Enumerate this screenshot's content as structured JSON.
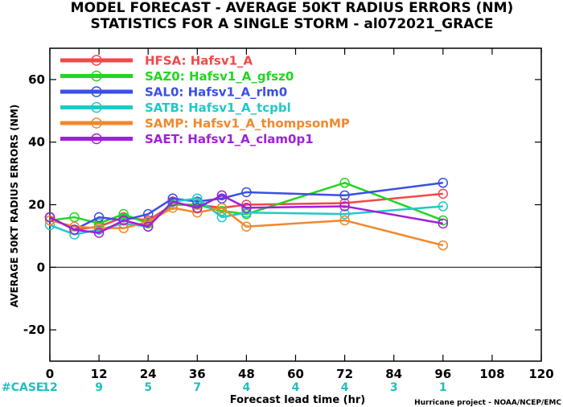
{
  "chart_data": {
    "type": "line",
    "title": "MODEL FORECAST - AVERAGE 50KT RADIUS ERRORS (NM)",
    "subtitle": "STATISTICS FOR A SINGLE STORM - al072021_GRACE",
    "ylabel": "AVERAGE 50KT RADIUS ERRORS (NM)",
    "xlabel": "Forecast lead time (hr)",
    "xlim": [
      0,
      120
    ],
    "ylim": [
      -30,
      70
    ],
    "xticks": [
      0,
      12,
      24,
      36,
      48,
      60,
      72,
      84,
      96,
      108,
      120
    ],
    "yticks": [
      -20,
      0,
      20,
      40,
      60
    ],
    "grid": false,
    "legend_position": "top-left",
    "case_label": "#CASE",
    "case_counts": [
      {
        "x": 0,
        "n": "12"
      },
      {
        "x": 12,
        "n": "9"
      },
      {
        "x": 24,
        "n": "5"
      },
      {
        "x": 36,
        "n": "7"
      },
      {
        "x": 48,
        "n": "4"
      },
      {
        "x": 60,
        "n": "4"
      },
      {
        "x": 72,
        "n": "4"
      },
      {
        "x": 84,
        "n": "3"
      },
      {
        "x": 96,
        "n": "1"
      }
    ],
    "credit": "Hurricane project - NOAA/NCEP/EMC",
    "series": [
      {
        "name": "HFSA: Hafsv1_A",
        "color": "#f24848",
        "x": [
          0,
          6,
          12,
          18,
          24,
          30,
          36,
          42,
          48,
          72,
          96
        ],
        "y": [
          16,
          12,
          13,
          16,
          15,
          20,
          20,
          19,
          20,
          20.5,
          23.5
        ]
      },
      {
        "name": "SAZ0: Hafsv1_A_gfsz0",
        "color": "#22d622",
        "x": [
          0,
          6,
          12,
          18,
          24,
          30,
          36,
          42,
          48,
          72,
          96
        ],
        "y": [
          15,
          16,
          14,
          17,
          14,
          20,
          20,
          18,
          17,
          27,
          15
        ]
      },
      {
        "name": "SAL0: Hafsv1_A_rlm0",
        "color": "#3a4fe6",
        "x": [
          0,
          6,
          12,
          18,
          24,
          30,
          36,
          42,
          48,
          72,
          96
        ],
        "y": [
          16,
          12,
          16,
          15,
          17,
          22,
          21,
          22,
          24,
          23,
          27
        ]
      },
      {
        "name": "SATB: Hafsv1_A_tcpbl",
        "color": "#22c8c8",
        "x": [
          0,
          6,
          12,
          18,
          24,
          30,
          36,
          42,
          48,
          72,
          96
        ],
        "y": [
          13.5,
          10.5,
          12,
          14,
          13,
          21,
          22,
          16,
          17.5,
          17,
          19.5
        ]
      },
      {
        "name": "SAMP: Hafsv1_A_thompsonMP",
        "color": "#f0882e",
        "x": [
          0,
          6,
          12,
          18,
          24,
          30,
          36,
          42,
          48,
          72,
          96
        ],
        "y": [
          15,
          13,
          12.5,
          12.5,
          14.5,
          19,
          17.5,
          19,
          13,
          15,
          7
        ]
      },
      {
        "name": "SAET: Hafsv1_A_clam0p1",
        "color": "#a020d8",
        "x": [
          0,
          6,
          12,
          18,
          24,
          30,
          36,
          42,
          48,
          72,
          96
        ],
        "y": [
          16,
          12,
          11,
          15,
          13,
          21,
          19,
          23,
          19,
          19.5,
          14
        ]
      }
    ]
  }
}
